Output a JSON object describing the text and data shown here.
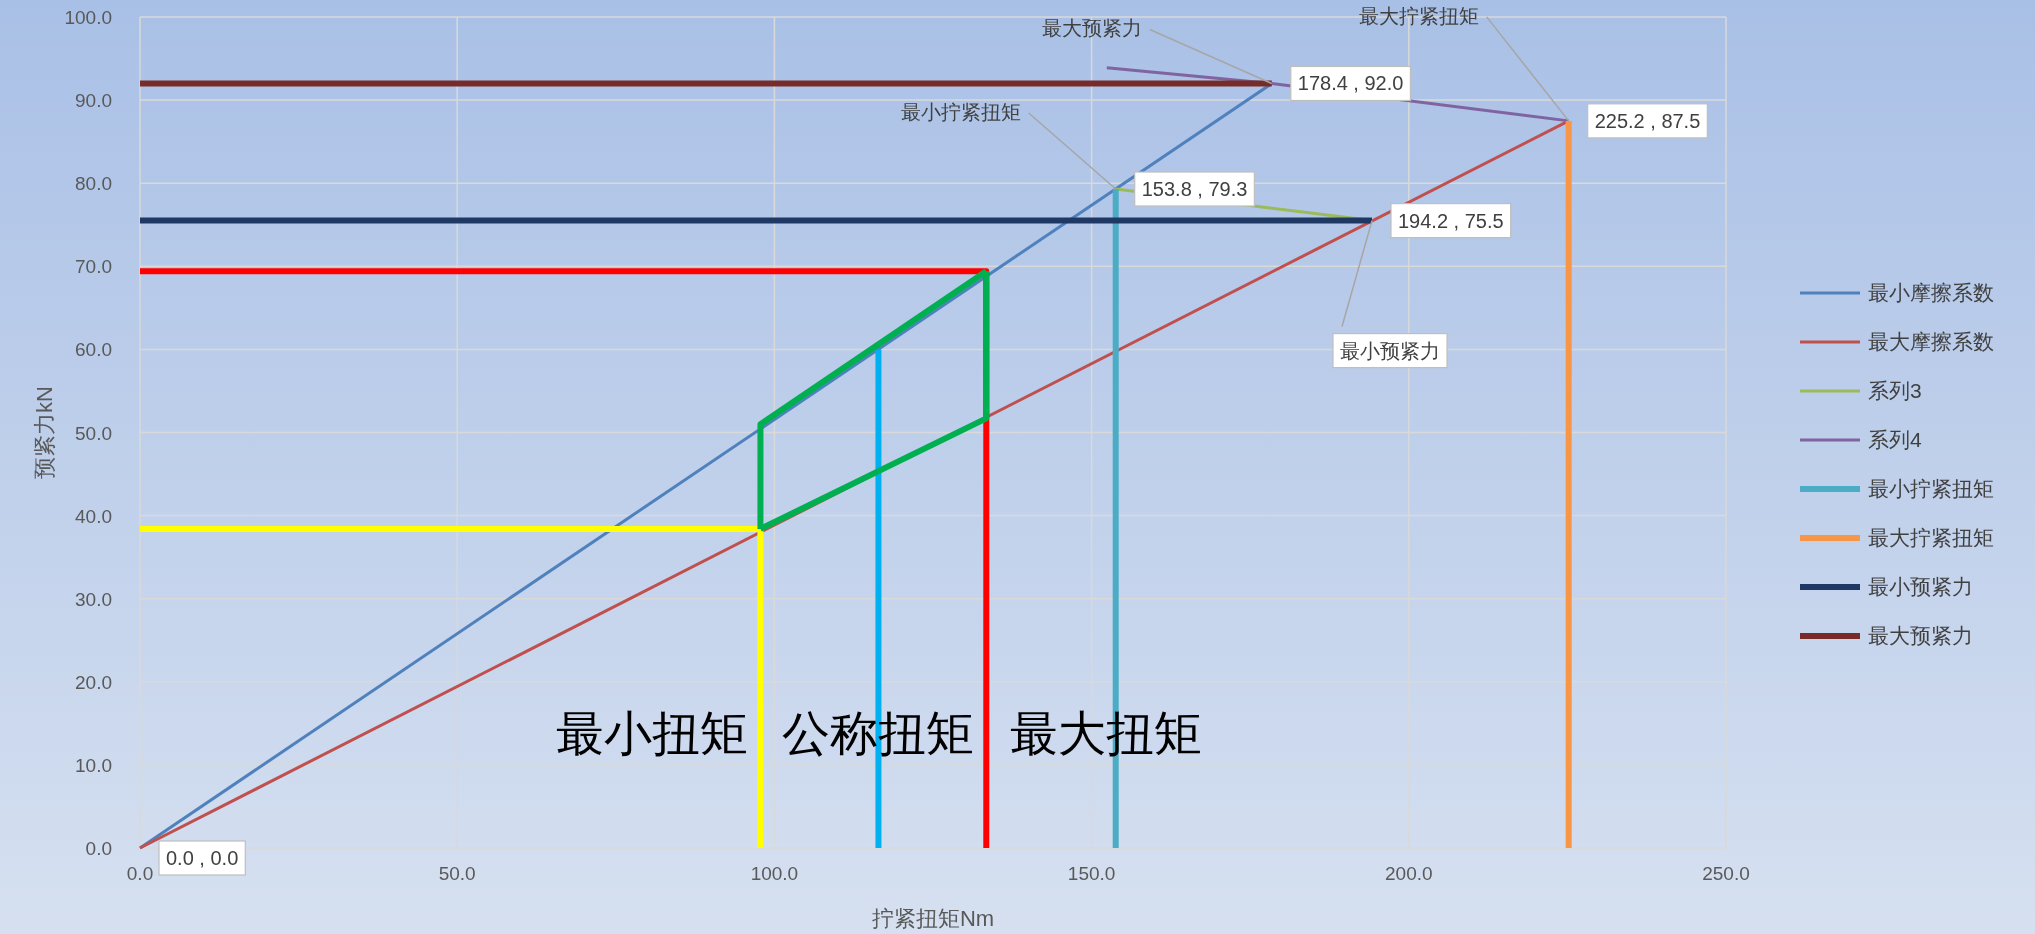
{
  "chart_data": {
    "type": "line",
    "xlabel": "拧紧扭矩Nm",
    "ylabel": "预紧力kN",
    "xlim": [
      0,
      250
    ],
    "xticks": [
      {
        "value": 0,
        "label": "0.0"
      },
      {
        "value": 50,
        "label": "50.0"
      },
      {
        "value": 100,
        "label": "100.0"
      },
      {
        "value": 150,
        "label": "150.0"
      },
      {
        "value": 200,
        "label": "200.0"
      },
      {
        "value": 250,
        "label": "250.0"
      }
    ],
    "ylim": [
      0,
      100
    ],
    "yticks": [
      {
        "value": 0,
        "label": "0.0"
      },
      {
        "value": 10,
        "label": "10.0"
      },
      {
        "value": 20,
        "label": "20.0"
      },
      {
        "value": 30,
        "label": "30.0"
      },
      {
        "value": 40,
        "label": "40.0"
      },
      {
        "value": 50,
        "label": "50.0"
      },
      {
        "value": 60,
        "label": "60.0"
      },
      {
        "value": 70,
        "label": "70.0"
      },
      {
        "value": 80,
        "label": "80.0"
      },
      {
        "value": 90,
        "label": "90.0"
      },
      {
        "value": 100,
        "label": "100.0"
      }
    ],
    "grid": true,
    "legend": "right",
    "marker": "none",
    "series": [
      {
        "name": "最小摩擦系数",
        "color": "#4f81bd",
        "x": [
          0,
          178.4
        ],
        "values": [
          0,
          92.0
        ]
      },
      {
        "name": "最大摩擦系数",
        "color": "#c0504d",
        "x": [
          0,
          225.2
        ],
        "values": [
          0,
          87.5
        ]
      },
      {
        "name": "系列3",
        "color": "#9bbb59",
        "x": [
          153.8,
          194.2
        ],
        "values": [
          79.3,
          75.5
        ]
      },
      {
        "name": "系列4",
        "color": "#8064a2",
        "x": [
          152.4,
          178.4,
          225.2
        ],
        "values": [
          93.9,
          92.0,
          87.5
        ]
      },
      {
        "name": "最小拧紧扭矩",
        "color": "#4bacc6",
        "x": [
          153.8,
          153.8
        ],
        "values": [
          0,
          79.3
        ]
      },
      {
        "name": "最大拧紧扭矩",
        "color": "#f79646",
        "x": [
          225.2,
          225.2
        ],
        "values": [
          0,
          87.5
        ]
      },
      {
        "name": "最小预紧力",
        "color": "#1f3864",
        "x": [
          0,
          194.2
        ],
        "values": [
          75.5,
          75.5
        ]
      },
      {
        "name": "最大预紧力",
        "color": "#772c2a",
        "x": [
          0,
          178.4
        ],
        "values": [
          92.0,
          92.0
        ]
      },
      {
        "color": "#ff0000",
        "x": [
          0,
          133.4,
          133.4
        ],
        "values": [
          69.4,
          69.4,
          0
        ]
      },
      {
        "color": "#ffff00",
        "x": [
          0,
          97.8,
          97.8
        ],
        "values": [
          38.4,
          38.4,
          0
        ]
      },
      {
        "color": "#00b0f0",
        "x": [
          116.4,
          116.4
        ],
        "values": [
          0,
          60.0
        ]
      },
      {
        "color": "#00b050",
        "x": [
          97.8,
          97.8,
          133.4
        ],
        "values": [
          38.4,
          51.0,
          69.4
        ]
      },
      {
        "color": "#00b050",
        "x": [
          97.8,
          133.4,
          133.4
        ],
        "values": [
          38.4,
          51.7,
          69.4
        ]
      }
    ],
    "annotations": [
      {
        "text": "0.0 , 0.0",
        "x": 0,
        "y": 0
      },
      {
        "text": "178.4 , 92.0",
        "x": 178.4,
        "y": 92.0
      },
      {
        "text": "225.2 , 87.5",
        "x": 225.2,
        "y": 87.5
      },
      {
        "text": "153.8 , 79.3",
        "x": 153.8,
        "y": 79.3
      },
      {
        "text": "194.2 , 75.5",
        "x": 194.2,
        "y": 75.5
      },
      {
        "text": "最大预紧力",
        "x": 178.4,
        "y": 92.0
      },
      {
        "text": "最大拧紧扭矩",
        "x": 225.2,
        "y": 87.5
      },
      {
        "text": "最小拧紧扭矩",
        "x": 153.8,
        "y": 79.3
      },
      {
        "text": "最小预紧力",
        "x": 194.2,
        "y": 75.5
      },
      {
        "text": "最小扭矩",
        "x": 97.8,
        "y": 7
      },
      {
        "text": "公称扭矩",
        "x": 116.4,
        "y": 7
      },
      {
        "text": "最大扭矩",
        "x": 133.4,
        "y": 7
      }
    ]
  }
}
